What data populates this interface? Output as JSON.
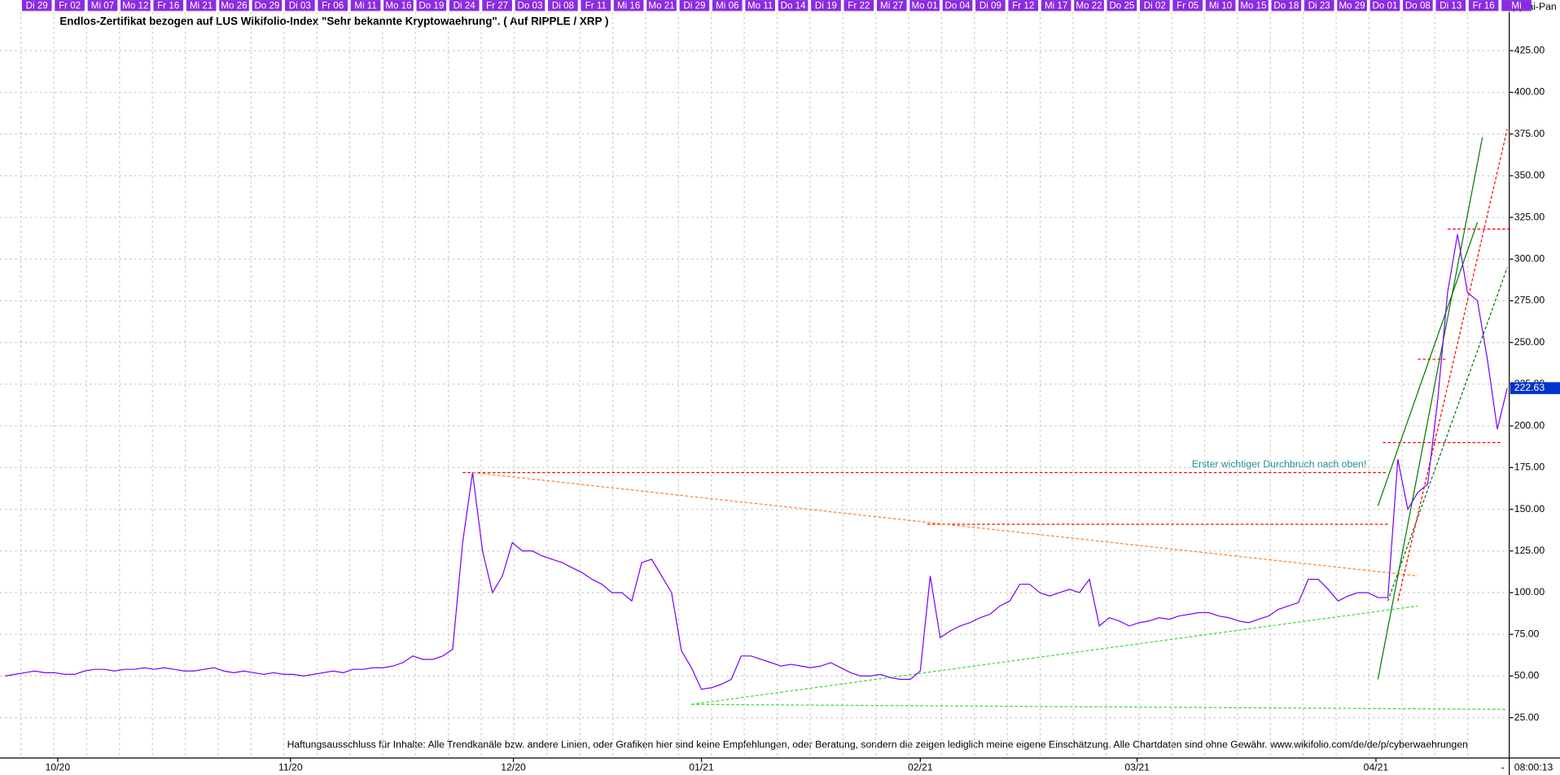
{
  "chart_data": {
    "type": "line",
    "title": "Endlos-Zertifikat bezogen auf LUS Wikifolio-Index \"Sehr bekannte Kryptowaehrung\". ( Auf RIPPLE / XRP )",
    "copyright": "(c)Tai-Pan",
    "time": "08:00:13",
    "annotation": "Erster wichtiger Durchbruch nach oben!",
    "disclaimer": "Haftungsausschluss für Inhalte: Alle Trendkanäle bzw. andere Linien, oder Grafiken hier sind keine Empfehlungen, oder Beratung, sondern die zeigen lediglich meine eigene Einschätzung. Alle Chartdaten sind ohne Gewähr.  www.wikifolio.com/de/de/p/cyberwaehrungen",
    "date_labels": [
      "Di 29",
      "Fr 02",
      "Mi 07",
      "Mo 12",
      "Fr 16",
      "Mi 21",
      "Mo 26",
      "Do 29",
      "Di 03",
      "Fr 06",
      "Mi 11",
      "Mo 16",
      "Do 19",
      "Di 24",
      "Fr 27",
      "Do 03",
      "Di 08",
      "Fr 11",
      "Mi 16",
      "Mo 21",
      "Di 29",
      "Mi 06",
      "Mo 11",
      "Do 14",
      "Di 19",
      "Fr 22",
      "Mi 27",
      "Mo 01",
      "Do 04",
      "Di 09",
      "Fr 12",
      "Mi 17",
      "Mo 22",
      "Do 25",
      "Di 02",
      "Fr 05",
      "Mi 10",
      "Mo 15",
      "Do 18",
      "Di 23",
      "Mo 29",
      "Do 01",
      "Do 08",
      "Di 13",
      "Fr 16",
      "Mi"
    ],
    "month_labels": [
      "10/20",
      "11/20",
      "12/20",
      "01/21",
      "02/21",
      "03/21",
      "04/21"
    ],
    "ylim": [
      2,
      447
    ],
    "yticks": [
      {
        "value": 25,
        "label": "25.00"
      },
      {
        "value": 50,
        "label": "50.00"
      },
      {
        "value": 75,
        "label": "75.00"
      },
      {
        "value": 100,
        "label": "100.00"
      },
      {
        "value": 125,
        "label": "125.00"
      },
      {
        "value": 150,
        "label": "150.00"
      },
      {
        "value": 175,
        "label": "175.00"
      },
      {
        "value": 200,
        "label": "200.00"
      },
      {
        "value": 225,
        "label": "225.00"
      },
      {
        "value": 250,
        "label": "250.00"
      },
      {
        "value": 275,
        "label": "275.00"
      },
      {
        "value": 300,
        "label": "300.00"
      },
      {
        "value": 325,
        "label": "325.00"
      },
      {
        "value": 350,
        "label": "350.00"
      },
      {
        "value": 375,
        "label": "375.00"
      },
      {
        "value": 400,
        "label": "400.00"
      },
      {
        "value": 425,
        "label": "425.00"
      }
    ],
    "grid": true,
    "series": [
      {
        "color": "#7b00ff",
        "values": [
          50,
          51,
          52,
          53,
          52,
          52,
          51,
          51,
          53,
          54,
          54,
          53,
          54,
          54,
          55,
          54,
          55,
          54,
          53,
          53,
          54,
          55,
          53,
          52,
          53,
          52,
          51,
          52,
          51,
          51,
          50,
          51,
          52,
          53,
          52,
          54,
          54,
          55,
          55,
          56,
          58,
          62,
          60,
          60,
          62,
          66,
          130,
          172,
          125,
          100,
          110,
          130,
          125,
          125,
          122,
          120,
          118,
          115,
          112,
          108,
          105,
          100,
          100,
          95,
          118,
          120,
          110,
          100,
          65,
          55,
          42,
          43,
          45,
          48,
          62,
          62,
          60,
          58,
          56,
          57,
          56,
          55,
          56,
          58,
          55,
          52,
          50,
          50,
          51,
          49,
          48,
          48,
          53,
          110,
          73,
          77,
          80,
          82,
          85,
          87,
          92,
          95,
          105,
          105,
          100,
          98,
          100,
          102,
          100,
          108,
          80,
          85,
          83,
          80,
          82,
          83,
          85,
          84,
          86,
          87,
          88,
          88,
          86,
          85,
          83,
          82,
          84,
          86,
          90,
          92,
          94,
          108,
          108,
          102,
          95,
          98,
          100,
          100,
          97,
          97,
          180,
          150,
          160,
          165,
          215,
          280,
          315,
          280,
          275,
          240,
          198,
          222.63
        ]
      }
    ],
    "trendlines": [
      {
        "color": "#ff0000",
        "dash": true,
        "x": [
          46,
          139
        ],
        "y": [
          172,
          172
        ]
      },
      {
        "color": "#ff0000",
        "dash": true,
        "x": [
          92.7,
          139
        ],
        "y": [
          141,
          141
        ]
      },
      {
        "color": "#ff0000",
        "dash": true,
        "x": [
          145,
          151.5
        ],
        "y": [
          318,
          318
        ]
      },
      {
        "color": "#ff0000",
        "dash": true,
        "x": [
          138.5,
          150.5
        ],
        "y": [
          190,
          190
        ]
      },
      {
        "color": "#ff0000",
        "dash": true,
        "x": [
          142,
          145
        ],
        "y": [
          240,
          240
        ]
      },
      {
        "color": "#ff7f27",
        "dash": true,
        "x": [
          47,
          142
        ],
        "y": [
          172,
          110
        ]
      },
      {
        "color": "#007a00",
        "dash": false,
        "x": [
          138,
          148.5
        ],
        "y": [
          48,
          373
        ]
      },
      {
        "color": "#007a00",
        "dash": false,
        "x": [
          138,
          148
        ],
        "y": [
          152,
          322
        ]
      },
      {
        "color": "#33dd33",
        "dash": true,
        "x": [
          69,
          142
        ],
        "y": [
          33,
          92
        ]
      },
      {
        "color": "#33dd33",
        "dash": true,
        "x": [
          69,
          151
        ],
        "y": [
          33,
          30
        ]
      },
      {
        "color": "#007a00",
        "dash": true,
        "x": [
          139,
          151
        ],
        "y": [
          95,
          295
        ]
      },
      {
        "color": "#ff0000",
        "dash": true,
        "x": [
          140,
          151
        ],
        "y": [
          95,
          378
        ]
      }
    ]
  }
}
